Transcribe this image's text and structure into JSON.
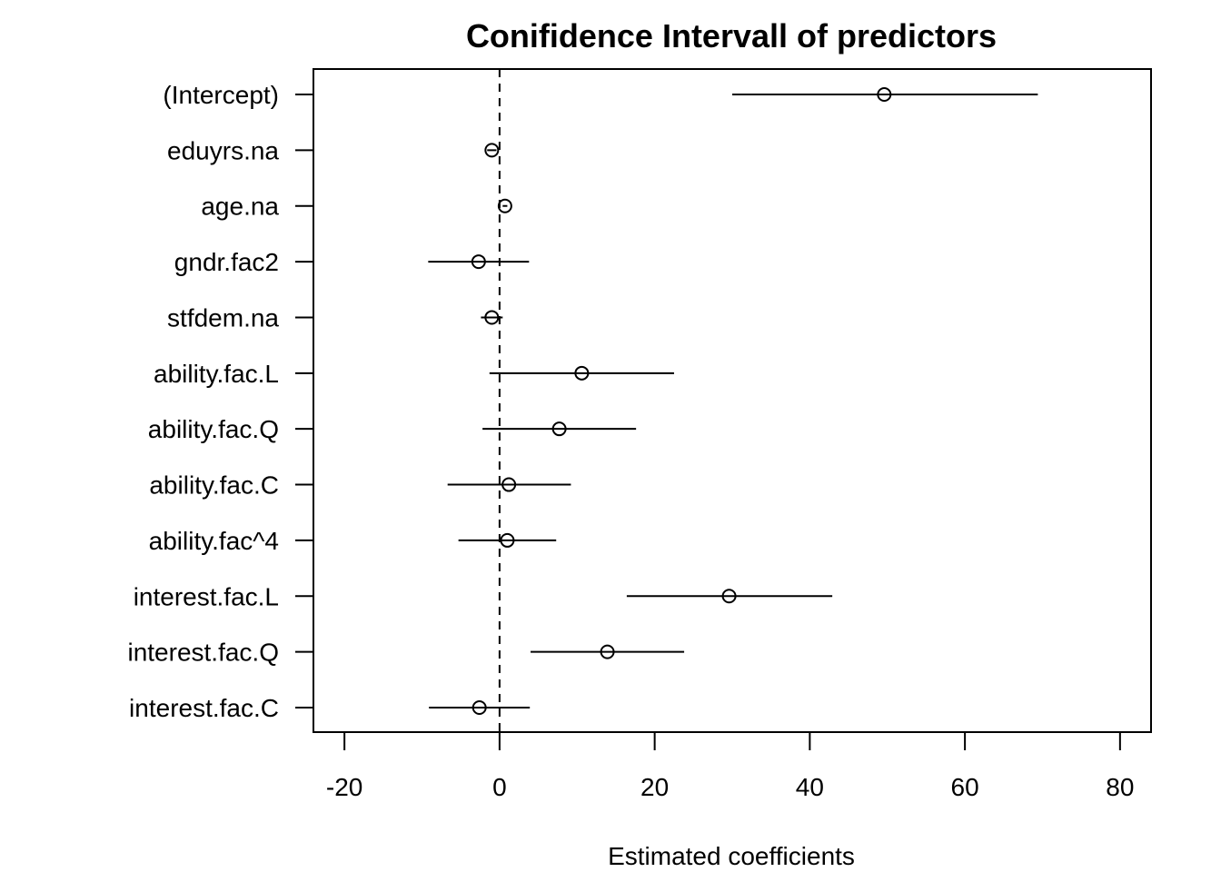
{
  "chart_data": {
    "type": "scatter",
    "title": "Conifidence Intervall of predictors",
    "xlabel": "Estimated coefficients",
    "ylabel": "",
    "xlim": [
      -24,
      84
    ],
    "xticks": [
      -20,
      0,
      20,
      40,
      60,
      80
    ],
    "xtick_labels": [
      "-20",
      "0",
      "20",
      "40",
      "60",
      "80"
    ],
    "reference_line": 0,
    "grid": false,
    "legend": "none",
    "series": [
      {
        "values": [
          {
            "label": "(Intercept)",
            "estimate": 49.6,
            "lower": 30.0,
            "upper": 69.4
          },
          {
            "label": "eduyrs.na",
            "estimate": -1.0,
            "lower": -1.6,
            "upper": -0.4
          },
          {
            "label": "age.na",
            "estimate": 0.7,
            "lower": 0.4,
            "upper": 1.0
          },
          {
            "label": "gndr.fac2",
            "estimate": -2.7,
            "lower": -9.2,
            "upper": 3.8
          },
          {
            "label": "stfdem.na",
            "estimate": -1.0,
            "lower": -2.4,
            "upper": 0.4
          },
          {
            "label": "ability.fac.L",
            "estimate": 10.6,
            "lower": -1.3,
            "upper": 22.5
          },
          {
            "label": "ability.fac.Q",
            "estimate": 7.7,
            "lower": -2.2,
            "upper": 17.6
          },
          {
            "label": "ability.fac.C",
            "estimate": 1.2,
            "lower": -6.7,
            "upper": 9.2
          },
          {
            "label": "ability.fac^4",
            "estimate": 1.0,
            "lower": -5.3,
            "upper": 7.3
          },
          {
            "label": "interest.fac.L",
            "estimate": 29.6,
            "lower": 16.4,
            "upper": 42.9
          },
          {
            "label": "interest.fac.Q",
            "estimate": 13.9,
            "lower": 4.0,
            "upper": 23.8
          },
          {
            "label": "interest.fac.C",
            "estimate": -2.6,
            "lower": -9.1,
            "upper": 3.9
          }
        ]
      }
    ]
  }
}
